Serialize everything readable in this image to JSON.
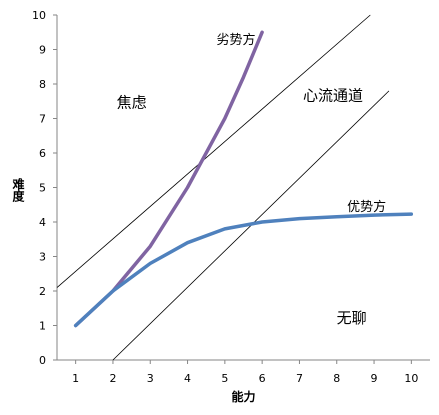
{
  "chart_data": {
    "type": "line",
    "xlabel": "能力",
    "ylabel": "难度",
    "xlim": [
      0.5,
      10.5
    ],
    "ylim": [
      0,
      10
    ],
    "x_ticks": [
      "1",
      "2",
      "3",
      "4",
      "5",
      "6",
      "7",
      "8",
      "9",
      "10"
    ],
    "y_ticks": [
      "0",
      "1",
      "2",
      "3",
      "4",
      "5",
      "6",
      "7",
      "8",
      "9",
      "10"
    ],
    "grid": false,
    "legend": "none",
    "series": [
      {
        "name": "劣势方",
        "color": "#8064a2",
        "x": [
          1,
          2,
          3,
          4,
          5,
          5.5,
          6
        ],
        "y": [
          1,
          2,
          3.3,
          5,
          7,
          8.2,
          9.5
        ]
      },
      {
        "name": "优势方",
        "color": "#4f81bd",
        "x": [
          1,
          2,
          3,
          4,
          5,
          6,
          7,
          8,
          9,
          10
        ],
        "y": [
          1,
          2,
          2.8,
          3.4,
          3.8,
          4,
          4.1,
          4.15,
          4.2,
          4.23
        ]
      }
    ],
    "channel_lines": [
      {
        "color": "#000000",
        "x": [
          0.5,
          8.9
        ],
        "y": [
          2.1,
          10
        ]
      },
      {
        "color": "#000000",
        "x": [
          2,
          9.4
        ],
        "y": [
          0,
          7.8
        ]
      }
    ],
    "annotations": [
      {
        "text": "焦虑",
        "x": 2.5,
        "y": 7.5
      },
      {
        "text": "心流通道",
        "x": 7.9,
        "y": 7.7
      },
      {
        "text": "无聊",
        "x": 8.4,
        "y": 1.25
      }
    ]
  }
}
